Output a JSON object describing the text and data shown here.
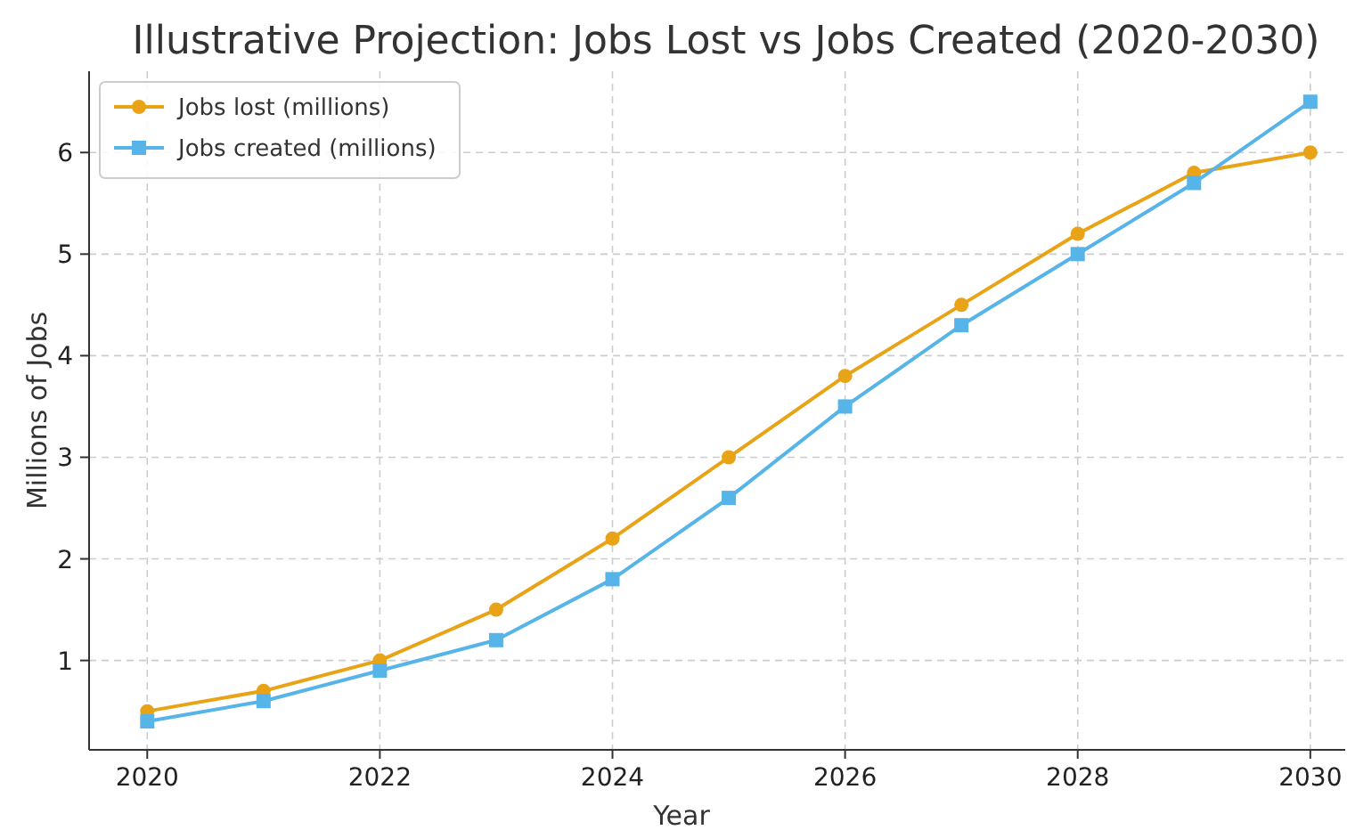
{
  "chart_data": {
    "type": "line",
    "title": "Illustrative Projection: Jobs Lost vs Jobs Created (2020-2030)",
    "xlabel": "Year",
    "ylabel": "Millions of Jobs",
    "x": [
      2020,
      2021,
      2022,
      2023,
      2024,
      2025,
      2026,
      2027,
      2028,
      2029,
      2030
    ],
    "series": [
      {
        "name": "Jobs lost (millions)",
        "color": "#e8a317",
        "marker": "circle",
        "values": [
          0.5,
          0.7,
          1.0,
          1.5,
          2.2,
          3.0,
          3.8,
          4.5,
          5.2,
          5.8,
          6.0
        ]
      },
      {
        "name": "Jobs created (millions)",
        "color": "#56b4e9",
        "marker": "square",
        "values": [
          0.4,
          0.6,
          0.9,
          1.2,
          1.8,
          2.6,
          3.5,
          4.3,
          5.0,
          5.7,
          6.5
        ]
      }
    ],
    "xlim": [
      2019.5,
      2030.3
    ],
    "xticks": [
      2020,
      2022,
      2024,
      2026,
      2028,
      2030
    ],
    "ylim": [
      0.12,
      6.8
    ],
    "yticks": [
      1,
      2,
      3,
      4,
      5,
      6
    ],
    "grid": true,
    "legend": "top left",
    "line_style": "solid"
  }
}
